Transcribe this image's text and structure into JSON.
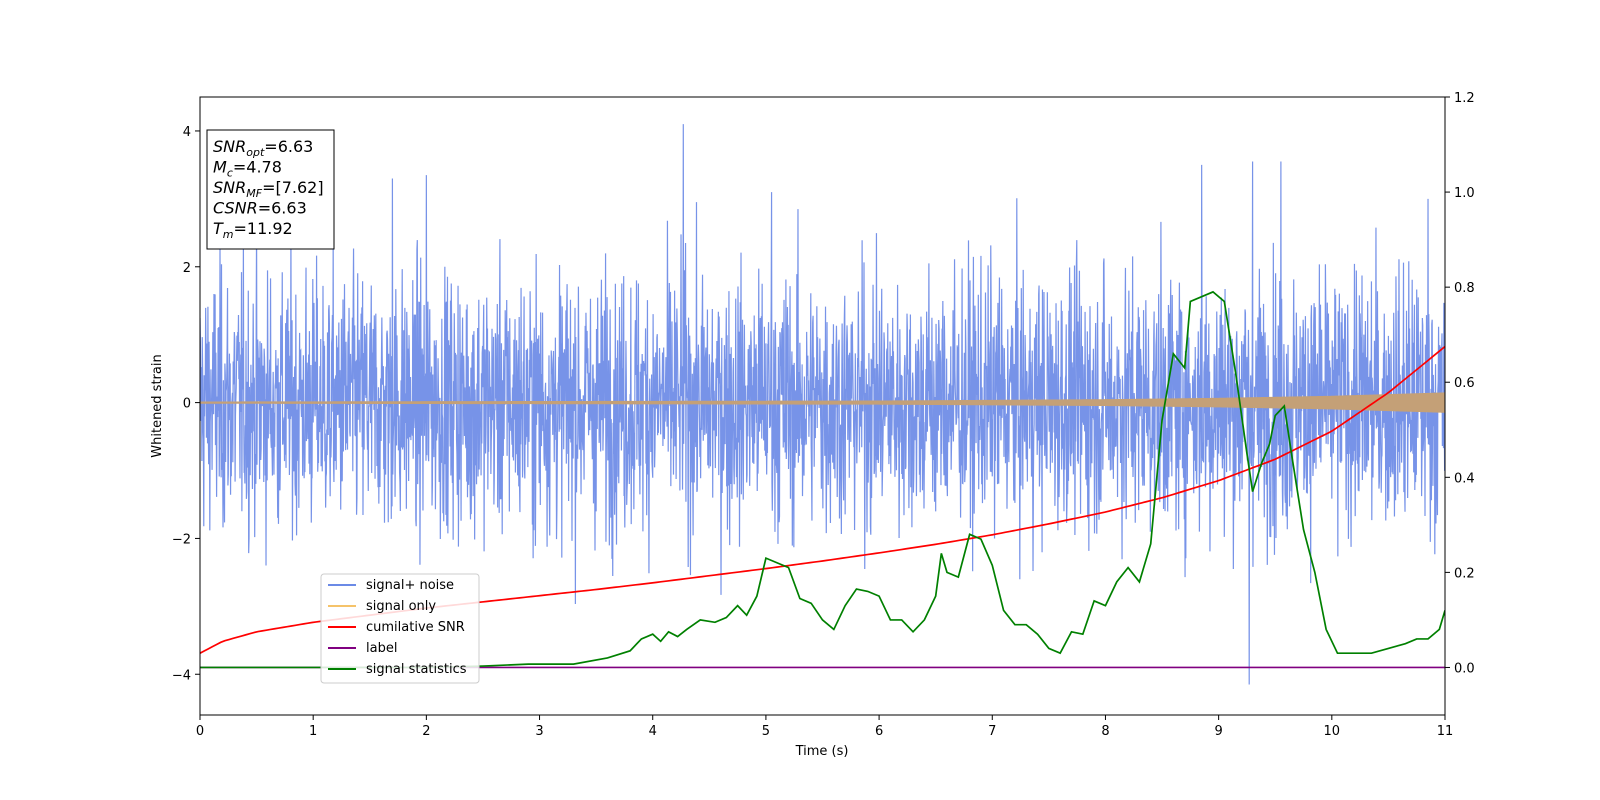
{
  "chart_data": {
    "type": "line",
    "xlabel": "Time (s)",
    "ylabel": "Whitened strain",
    "xlim": [
      0,
      11
    ],
    "ylim": [
      -4.6,
      4.5
    ],
    "y2lim": [
      -0.1,
      1.2
    ],
    "x_ticks": [
      "0",
      "1",
      "2",
      "3",
      "4",
      "5",
      "6",
      "7",
      "8",
      "9",
      "10",
      "11"
    ],
    "y_ticks": [
      "4",
      "2",
      "0",
      "−2",
      "−4"
    ],
    "y2_ticks": [
      "1.2",
      "1.0",
      "0.8",
      "0.6",
      "0.4",
      "0.2",
      "0.0"
    ],
    "grid": false,
    "legend_position": "lower-left",
    "annotation_lines": [
      {
        "label": "SNR",
        "sub": "opt",
        "value": "=6.63"
      },
      {
        "label": "M",
        "sub": "c",
        "value": "=4.78"
      },
      {
        "label": "SNR",
        "sub": "MF",
        "value": "=[7.62]"
      },
      {
        "label": "CSNR",
        "sub": "",
        "value": "=6.63"
      },
      {
        "label": "T",
        "sub": "m",
        "value": "=11.92"
      }
    ],
    "series": [
      {
        "name": "signal+ noise",
        "color": "#6b8ae6",
        "axis": "left",
        "description_range": [
          -4.2,
          4.1
        ],
        "typical_amplitude": 1.2,
        "peaks": [
          [
            1.7,
            3.3
          ],
          [
            2.0,
            3.35
          ],
          [
            4.27,
            4.1
          ],
          [
            5.05,
            3.1
          ],
          [
            8.85,
            3.5
          ],
          [
            9.3,
            3.55
          ],
          [
            9.55,
            3.55
          ],
          [
            9.27,
            -4.15
          ],
          [
            10.85,
            3.0
          ]
        ]
      },
      {
        "name": "signal only",
        "color": "#f5c36a",
        "axis": "left",
        "envelope_x": [
          0,
          6,
          8,
          9,
          10,
          11
        ],
        "envelope_amp": [
          0.015,
          0.03,
          0.05,
          0.07,
          0.1,
          0.15
        ]
      },
      {
        "name": "cumilative SNR",
        "color": "#ff0000",
        "axis": "right",
        "x": [
          0,
          0.2,
          0.5,
          1,
          1.5,
          2,
          2.5,
          3,
          3.5,
          4,
          4.5,
          5,
          5.5,
          6,
          6.5,
          7,
          7.5,
          8,
          8.5,
          9,
          9.5,
          10,
          10.5,
          11
        ],
        "y": [
          0.03,
          0.055,
          0.075,
          0.095,
          0.11,
          0.125,
          0.138,
          0.151,
          0.164,
          0.178,
          0.193,
          0.208,
          0.224,
          0.241,
          0.259,
          0.279,
          0.302,
          0.327,
          0.357,
          0.393,
          0.438,
          0.497,
          0.578,
          0.675
        ]
      },
      {
        "name": "label",
        "color": "#800080",
        "axis": "right",
        "x": [
          0,
          11
        ],
        "y": [
          0.0,
          0.0
        ]
      },
      {
        "name": "signal statistics",
        "color": "#008000",
        "axis": "right",
        "x": [
          0,
          1,
          2,
          2.5,
          2.9,
          3.3,
          3.6,
          3.8,
          3.9,
          4.0,
          4.07,
          4.14,
          4.22,
          4.3,
          4.42,
          4.55,
          4.65,
          4.75,
          4.83,
          4.92,
          5.0,
          5.1,
          5.2,
          5.3,
          5.4,
          5.5,
          5.6,
          5.7,
          5.8,
          5.9,
          6.0,
          6.1,
          6.2,
          6.3,
          6.4,
          6.5,
          6.55,
          6.6,
          6.7,
          6.8,
          6.9,
          7.0,
          7.1,
          7.2,
          7.3,
          7.4,
          7.5,
          7.6,
          7.7,
          7.8,
          7.9,
          8.0,
          8.1,
          8.2,
          8.3,
          8.4,
          8.5,
          8.6,
          8.7,
          8.75,
          8.85,
          8.95,
          9.05,
          9.15,
          9.25,
          9.3,
          9.38,
          9.45,
          9.5,
          9.58,
          9.65,
          9.75,
          9.85,
          9.95,
          10.05,
          10.15,
          10.25,
          10.35,
          10.5,
          10.65,
          10.75,
          10.85,
          10.95,
          11.0
        ],
        "y": [
          0.0,
          0.0,
          0.0,
          0.003,
          0.007,
          0.007,
          0.02,
          0.035,
          0.06,
          0.07,
          0.055,
          0.075,
          0.065,
          0.08,
          0.1,
          0.095,
          0.105,
          0.13,
          0.11,
          0.15,
          0.23,
          0.22,
          0.21,
          0.145,
          0.135,
          0.1,
          0.08,
          0.13,
          0.165,
          0.16,
          0.15,
          0.1,
          0.1,
          0.075,
          0.1,
          0.15,
          0.24,
          0.2,
          0.19,
          0.28,
          0.27,
          0.215,
          0.12,
          0.09,
          0.09,
          0.07,
          0.04,
          0.03,
          0.075,
          0.07,
          0.14,
          0.13,
          0.18,
          0.21,
          0.18,
          0.26,
          0.52,
          0.66,
          0.63,
          0.77,
          0.78,
          0.79,
          0.77,
          0.62,
          0.45,
          0.37,
          0.43,
          0.47,
          0.53,
          0.55,
          0.44,
          0.29,
          0.2,
          0.08,
          0.03,
          0.03,
          0.03,
          0.03,
          0.04,
          0.05,
          0.06,
          0.06,
          0.08,
          0.12
        ]
      }
    ]
  }
}
